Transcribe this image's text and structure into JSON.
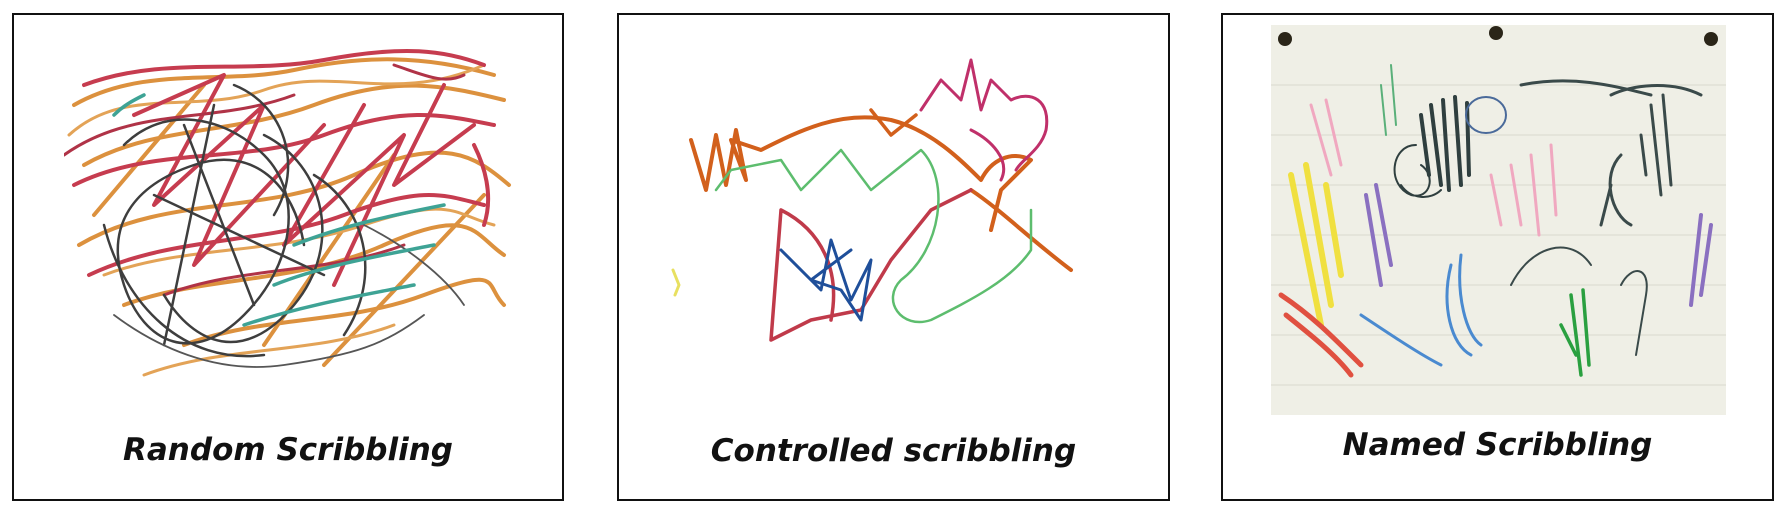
{
  "panels": [
    {
      "caption": "Random Scribbling"
    },
    {
      "caption": "Controlled scribbling"
    },
    {
      "caption": "Named Scribbling"
    }
  ],
  "colors": {
    "border": "#111111",
    "crayon_red": "#c0283c",
    "crayon_orange": "#d9862a",
    "crayon_black": "#2a2a2a",
    "crayon_teal": "#2a9a8a",
    "marker_orange": "#d2601c",
    "marker_green": "#5dbd6e",
    "marker_blue": "#1f4f9a",
    "marker_magenta": "#c0306a",
    "marker_crimson": "#c03a4a",
    "paper": "#efefe6"
  }
}
